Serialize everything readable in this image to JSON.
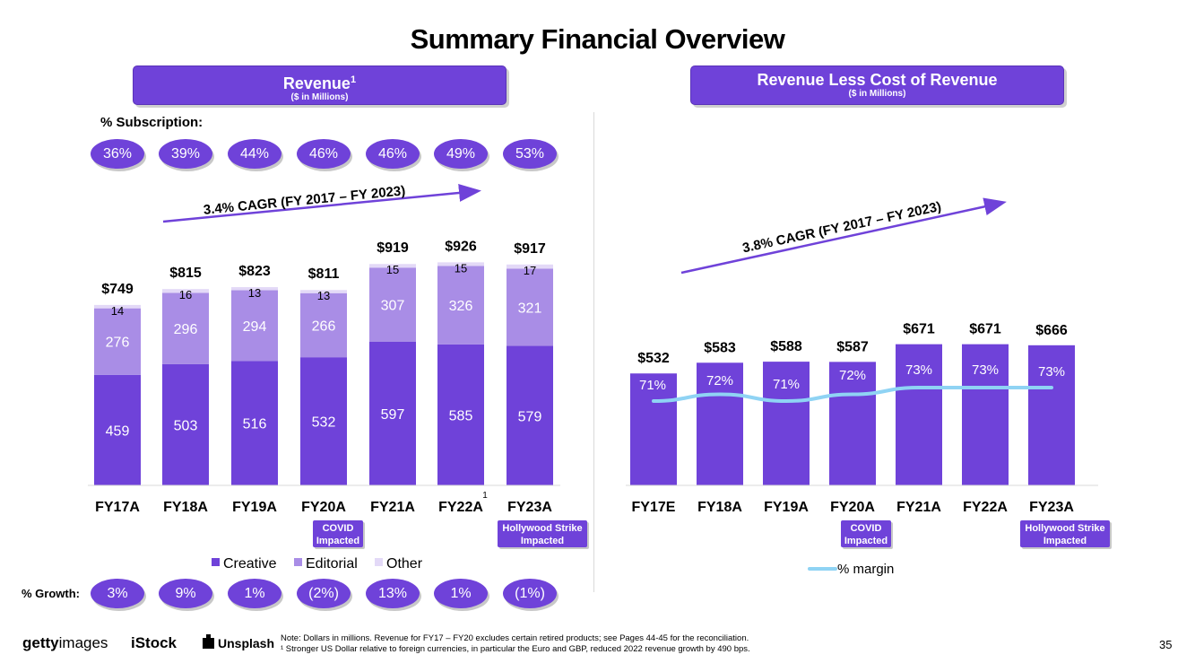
{
  "title": "Summary Financial Overview",
  "revenue_header": {
    "title": "Revenue",
    "sup": "1",
    "subtitle": "($ in Millions)"
  },
  "rlcr_header": {
    "title": "Revenue Less Cost of Revenue",
    "subtitle": "($ in Millions)"
  },
  "subscription_label": "% Subscription:",
  "subscription_pcts": [
    "36%",
    "39%",
    "44%",
    "46%",
    "46%",
    "49%",
    "53%"
  ],
  "growth_label": "% Growth:",
  "growth_pcts": [
    "3%",
    "9%",
    "1%",
    "(2%)",
    "13%",
    "1%",
    "(1%)"
  ],
  "colors": {
    "creative": "#6f42d9",
    "editorial": "#a98de6",
    "other": "#e3d9f7",
    "margin_line": "#8fd3f4",
    "accent": "#6f42d9"
  },
  "chart_data": [
    {
      "type": "bar",
      "stacked": true,
      "title": "Revenue",
      "categories": [
        "FY17A",
        "FY18A",
        "FY19A",
        "FY20A",
        "FY21A",
        "FY22A",
        "FY23A"
      ],
      "category_superscripts": [
        "",
        "",
        "",
        "",
        "",
        "1",
        ""
      ],
      "series": [
        {
          "name": "Creative",
          "values": [
            459,
            503,
            516,
            532,
            597,
            585,
            579
          ]
        },
        {
          "name": "Editorial",
          "values": [
            276,
            296,
            294,
            266,
            307,
            326,
            321
          ]
        },
        {
          "name": "Other",
          "values": [
            14,
            16,
            13,
            13,
            15,
            15,
            17
          ]
        }
      ],
      "totals": [
        "$749",
        "$815",
        "$823",
        "$811",
        "$919",
        "$926",
        "$917"
      ],
      "cagr_label": "3.4% CAGR (FY 2017 – FY 2023)",
      "callouts": [
        {
          "category": "FY20A",
          "text": "COVID Impacted",
          "line1": "COVID",
          "line2": "Impacted"
        },
        {
          "category": "FY23A",
          "text": "Hollywood Strike Impacted",
          "line1": "Hollywood Strike",
          "line2": "Impacted"
        }
      ],
      "ylim": [
        0,
        1000
      ]
    },
    {
      "type": "bar",
      "title": "Revenue Less Cost of Revenue",
      "categories": [
        "FY17E",
        "FY18A",
        "FY19A",
        "FY20A",
        "FY21A",
        "FY22A",
        "FY23A"
      ],
      "values": [
        532,
        583,
        588,
        587,
        671,
        671,
        666
      ],
      "value_labels": [
        "$532",
        "$583",
        "$588",
        "$587",
        "$671",
        "$671",
        "$666"
      ],
      "line_series": {
        "name": "% margin",
        "values": [
          71,
          72,
          71,
          72,
          73,
          73,
          73
        ],
        "labels": [
          "71%",
          "72%",
          "71%",
          "72%",
          "73%",
          "73%",
          "73%"
        ]
      },
      "cagr_label": "3.8% CAGR (FY 2017 – FY 2023)",
      "callouts": [
        {
          "category": "FY20A",
          "text": "COVID Impacted",
          "line1": "COVID",
          "line2": "Impacted"
        },
        {
          "category": "FY23A",
          "text": "Hollywood Strike Impacted",
          "line1": "Hollywood Strike",
          "line2": "Impacted"
        }
      ],
      "ylim": [
        0,
        700
      ]
    }
  ],
  "legend_revenue": [
    "Creative",
    "Editorial",
    "Other"
  ],
  "legend_margin": "% margin",
  "footer": {
    "logo_getty_bold": "getty",
    "logo_getty_light": "images",
    "logo_istock": "iStock",
    "logo_unsplash": "Unsplash",
    "note1": "Note: Dollars in millions. Revenue for FY17 – FY20 excludes certain retired products; see Pages 44-45 for the reconciliation.",
    "note2": "¹ Stronger US Dollar relative to foreign currencies, in particular the Euro and GBP, reduced 2022 revenue growth by 490 bps.",
    "page": "35"
  }
}
